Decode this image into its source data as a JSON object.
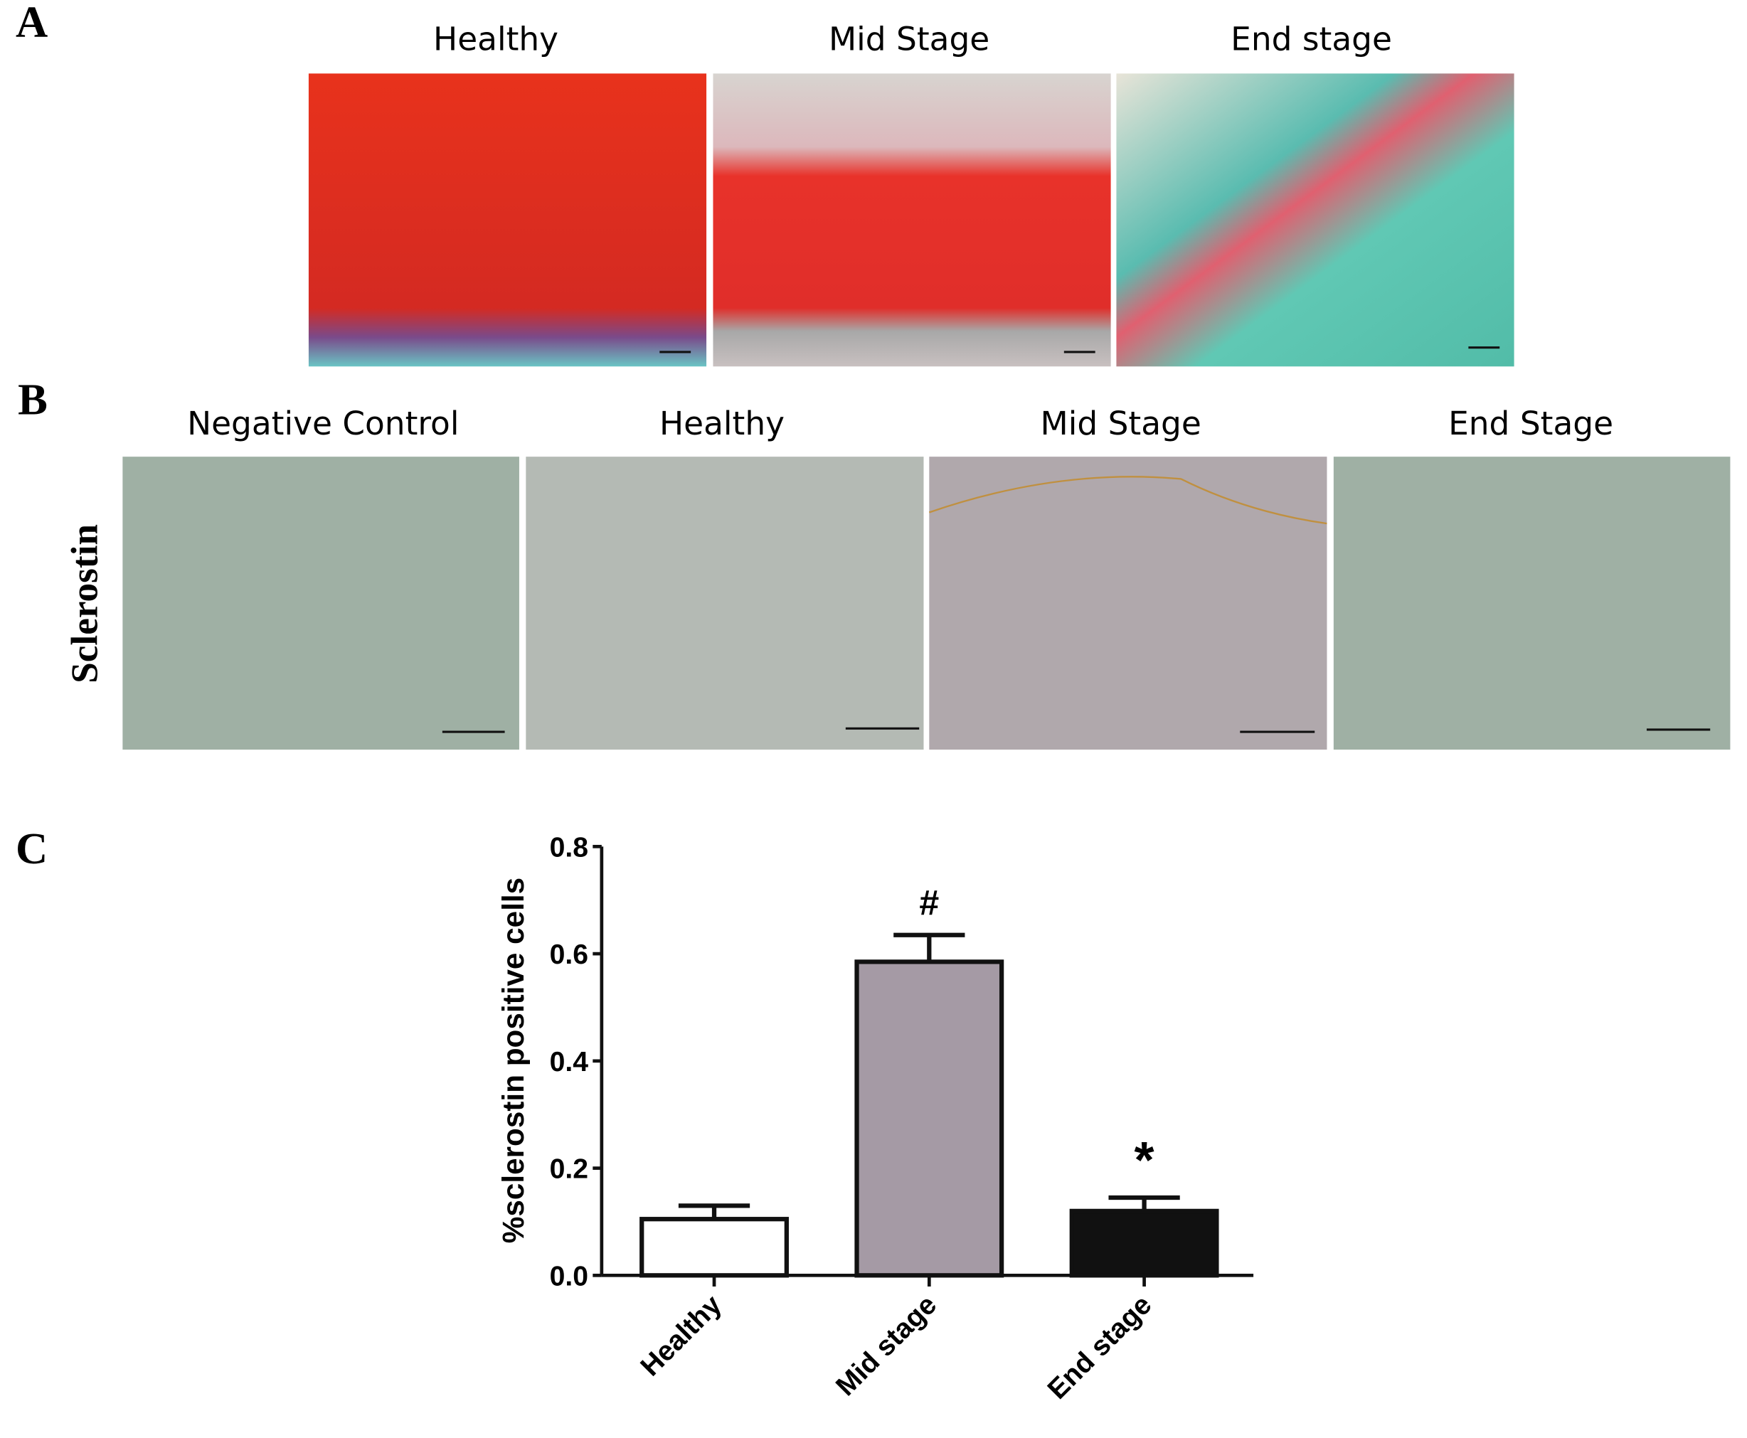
{
  "panel_a": {
    "label": "A",
    "titles": [
      "Healthy",
      "Mid Stage",
      "End stage"
    ]
  },
  "panel_b": {
    "label": "B",
    "row_label": "Sclerostin",
    "titles": [
      "Negative Control",
      "Healthy",
      "Mid Stage",
      "End Stage"
    ]
  },
  "chart_data": {
    "label": "C",
    "type": "bar",
    "ylabel": "%sclerostin positive cells",
    "categories": [
      "Healthy",
      "Mid stage",
      "End stage"
    ],
    "values": [
      0.105,
      0.585,
      0.12
    ],
    "errors": [
      0.025,
      0.05,
      0.025
    ],
    "colors": [
      "#ffffff",
      "#a59aa5",
      "#111111"
    ],
    "value_annotations": [
      null,
      "#",
      "*"
    ],
    "ylim": [
      0,
      0.8
    ],
    "yticks": [
      {
        "value": 0,
        "label": "0.0"
      },
      0.2,
      0.4,
      0.6,
      0.8
    ]
  }
}
